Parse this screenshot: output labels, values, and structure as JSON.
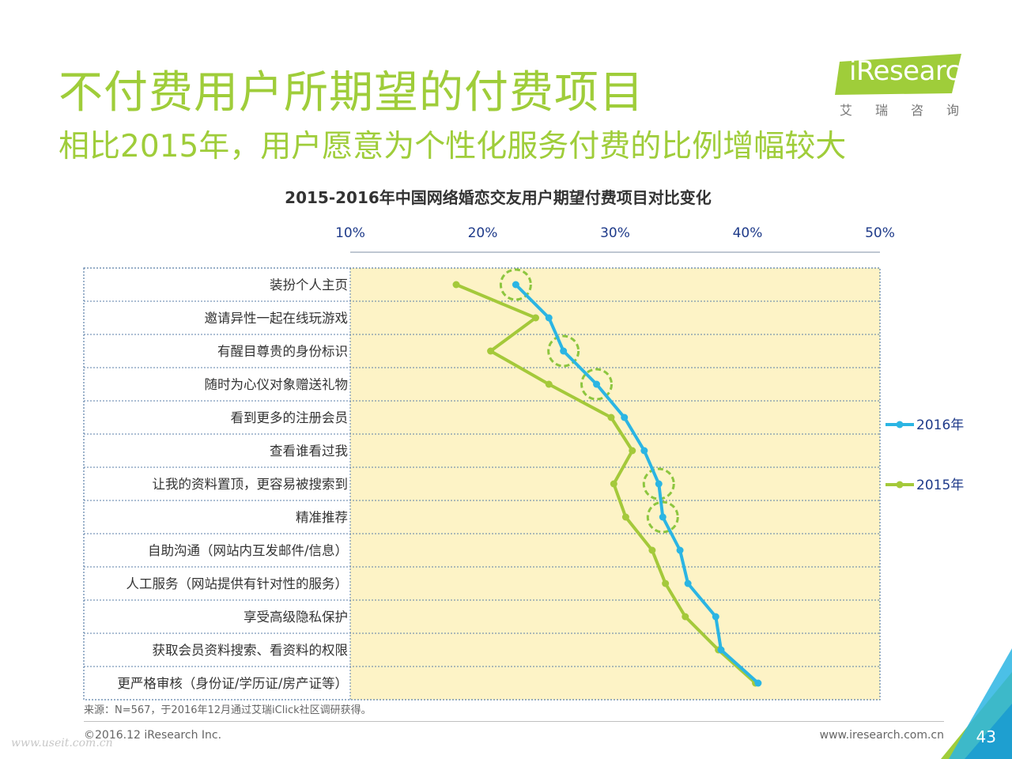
{
  "header": {
    "title": "不付费用户所期望的付费项目",
    "subtitle": "相比2015年，用户愿意为个性化服务付费的比例增幅较大"
  },
  "logo": {
    "text": "iResearch",
    "sub": "艾瑞咨询"
  },
  "chart_data": {
    "type": "line",
    "title": "2015-2016年中国网络婚恋交友用户期望付费项目对比变化",
    "orientation": "horizontal-values",
    "x_ticks": [
      "10%",
      "20%",
      "30%",
      "40%",
      "50%"
    ],
    "xlim": [
      10,
      50
    ],
    "categories": [
      "装扮个人主页",
      "邀请异性一起在线玩游戏",
      "有醒目尊贵的身份标识",
      "随时为心仪对象赠送礼物",
      "看到更多的注册会员",
      "查看谁看过我",
      "让我的资料置顶，更容易被搜索到",
      "精准推荐",
      "自助沟通（网站内互发邮件/信息）",
      "人工服务（网站提供有针对性的服务）",
      "享受高级隐私保护",
      "获取会员资料搜索、看资料的权限",
      "更严格审核（身份证/学历证/房产证等）"
    ],
    "series": [
      {
        "name": "2016年",
        "color": "#2bb5e3",
        "values": [
          22.5,
          25.0,
          26.1,
          28.6,
          30.7,
          32.2,
          33.3,
          33.6,
          34.9,
          35.5,
          37.6,
          38.0,
          40.8
        ]
      },
      {
        "name": "2015年",
        "color": "#a4c93a",
        "values": [
          18.0,
          24.0,
          20.6,
          25.0,
          29.7,
          31.3,
          29.9,
          30.8,
          32.8,
          33.8,
          35.3,
          37.8,
          40.6
        ]
      }
    ],
    "highlighted_categories": [
      0,
      2,
      3,
      6,
      7
    ],
    "legend_position": "right"
  },
  "footnote": "来源：N=567，于2016年12月通过艾瑞iClick社区调研获得。",
  "footer": {
    "copyright": "©2016.12 iResearch Inc.",
    "website": "www.iresearch.com.cn",
    "watermark": "www.useit.com.cn",
    "page_number": "43"
  }
}
